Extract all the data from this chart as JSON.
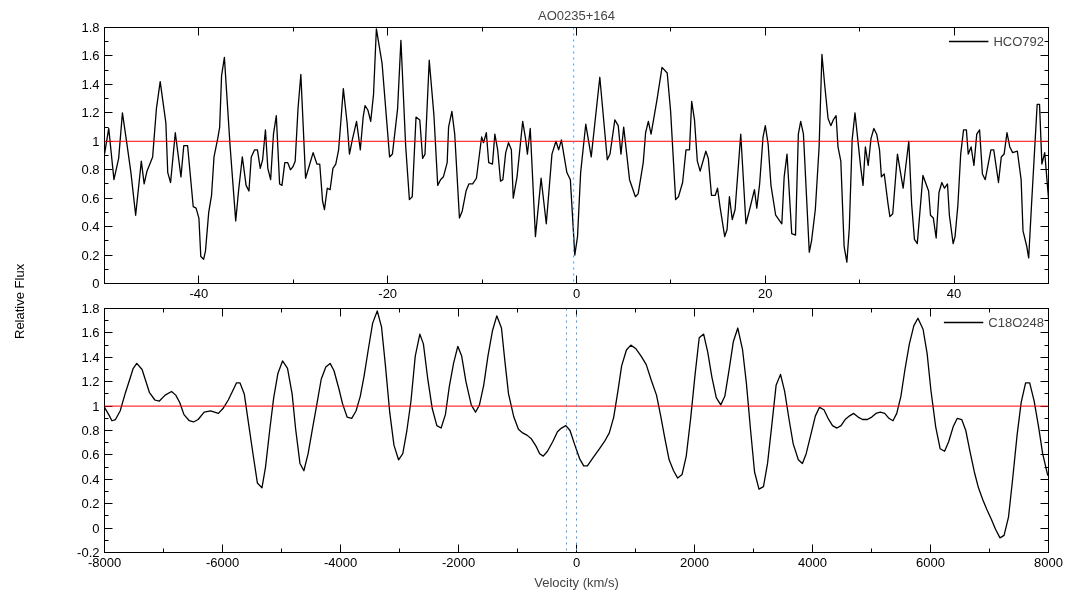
{
  "chart_data": [
    {
      "type": "line",
      "title": "AO0235+164",
      "ylabel": "Relative Flux",
      "legend": "top right",
      "grid": false,
      "xlim": [
        -50,
        50
      ],
      "xticks": [
        {
          "value": -50,
          "label": null
        },
        -40,
        {
          "value": -30,
          "label": null
        },
        -20,
        {
          "value": -10,
          "label": null
        },
        0,
        {
          "value": 10,
          "label": null
        },
        20,
        {
          "value": 30,
          "label": null
        },
        40,
        {
          "value": 50,
          "label": null
        }
      ],
      "ylim": [
        0,
        1.8
      ],
      "yticks": [
        0,
        {
          "value": 0.1,
          "label": null
        },
        0.2,
        {
          "value": 0.3,
          "label": null
        },
        0.4,
        {
          "value": 0.5,
          "label": null
        },
        0.6,
        {
          "value": 0.7,
          "label": null
        },
        0.8,
        {
          "value": 0.9,
          "label": null
        },
        1,
        {
          "value": 1.1,
          "label": null
        },
        1.2,
        {
          "value": 1.3,
          "label": null
        },
        1.4,
        {
          "value": 1.5,
          "label": null
        },
        1.6,
        {
          "value": 1.7,
          "label": null
        },
        1.8
      ],
      "ref_lines": [
        {
          "axis": "y",
          "value": 1,
          "color": "#ff0000",
          "line_style": "solid"
        },
        {
          "axis": "x",
          "value": -0.3,
          "color": "#3399ff",
          "line_style": "dotted"
        }
      ],
      "series": [
        {
          "name": "HCO792",
          "color": "#000000",
          "x": [
            -50,
            -49.55,
            -49.0,
            -48.5,
            -48.1,
            -47.6,
            -47.2,
            -46.7,
            -46.1,
            -45.8,
            -45.5,
            -44.9,
            -44.5,
            -44.1,
            -43.5,
            -43.3,
            -43.0,
            -42.5,
            -41.9,
            -41.6,
            -41.2,
            -40.6,
            -40.3,
            -40.0,
            -39.8,
            -39.5,
            -39.3,
            -38.96,
            -38.66,
            -38.4,
            -38.0,
            -37.8,
            -37.6,
            -37.3,
            -36.7,
            -36.1,
            -35.8,
            -35.4,
            -35.0,
            -34.7,
            -34.45,
            -34.1,
            -33.8,
            -33.5,
            -33.25,
            -32.95,
            -32.7,
            -32.4,
            -32.1,
            -31.8,
            -31.45,
            -31.2,
            -30.9,
            -30.6,
            -30.3,
            -30.05,
            -29.8,
            -29.5,
            -29.2,
            -28.7,
            -28.3,
            -27.9,
            -27.5,
            -27.2,
            -26.9,
            -26.7,
            -26.4,
            -26.1,
            -25.8,
            -25.5,
            -25.2,
            -24.95,
            -24.7,
            -24.3,
            -24.05,
            -23.75,
            -23.3,
            -22.9,
            -22.6,
            -22.4,
            -22.1,
            -21.8,
            -21.5,
            -21.2,
            -20.6,
            -19.8,
            -19.5,
            -18.95,
            -18.6,
            -18.1,
            -17.7,
            -17.4,
            -17.0,
            -16.6,
            -16.3,
            -16.05,
            -15.6,
            -15.1,
            -14.7,
            -14.4,
            -14.1,
            -13.7,
            -13.55,
            -13.2,
            -12.9,
            -12.4,
            -12.1,
            -11.7,
            -11.4,
            -11.0,
            -10.6,
            -10.05,
            -9.85,
            -9.55,
            -9.3,
            -8.9,
            -8.65,
            -8.35,
            -8.05,
            -7.8,
            -7.5,
            -7.2,
            -6.9,
            -6.7,
            -6.3,
            -5.7,
            -5.4,
            -5.2,
            -4.9,
            -4.35,
            -3.75,
            -3.2,
            -2.6,
            -2.18,
            -1.89,
            -1.6,
            -1.02,
            -0.65,
            -0.18,
            0.11,
            0.44,
            0.98,
            1.56,
            2.47,
            3.26,
            3.55,
            4.06,
            4.42,
            4.71,
            5.0,
            5.62,
            6.24,
            6.53,
            7.07,
            7.32,
            7.61,
            7.9,
            8.52,
            9.06,
            9.61,
            9.97,
            10.5,
            10.8,
            11.24,
            11.6,
            11.97,
            12.2,
            12.5,
            12.8,
            13.1,
            13.7,
            13.96,
            14.3,
            14.7,
            14.94,
            15.2,
            15.7,
            15.95,
            16.2,
            16.5,
            16.8,
            17.4,
            17.95,
            18.3,
            18.85,
            19.1,
            19.4,
            19.76,
            20.0,
            20.3,
            20.6,
            21.1,
            21.75,
            22.0,
            22.3,
            22.8,
            23.2,
            23.5,
            23.75,
            24.04,
            24.66,
            24.9,
            25.3,
            25.7,
            26.0,
            26.3,
            26.65,
            26.94,
            27.2,
            27.5,
            27.7,
            28.0,
            28.35,
            28.64,
            28.9,
            29.2,
            29.5,
            29.8,
            30.1,
            30.35,
            30.6,
            30.9,
            31.2,
            31.5,
            31.8,
            32.1,
            32.3,
            32.6,
            33.0,
            33.2,
            33.5,
            34.0,
            34.4,
            34.6,
            35.2,
            35.5,
            35.8,
            36.1,
            36.7,
            37.3,
            37.5,
            37.8,
            38.1,
            38.4,
            38.7,
            38.98,
            39.3,
            39.5,
            39.9,
            40.1,
            40.4,
            40.7,
            41.0,
            41.3,
            41.5,
            41.8,
            42.1,
            42.4,
            42.7,
            43.0,
            43.3,
            43.9,
            44.2,
            44.7,
            45.0,
            45.3,
            45.6,
            45.9,
            46.2,
            46.7,
            47.1,
            47.3,
            47.7,
            47.9,
            48.2,
            48.8,
            49.05,
            49.3,
            49.6,
            50
          ],
          "values": [
            0.91,
            1.09,
            0.73,
            0.88,
            1.2,
            0.97,
            0.78,
            0.48,
            0.86,
            0.7,
            0.79,
            0.89,
            1.23,
            1.42,
            1.13,
            0.78,
            0.71,
            1.06,
            0.75,
            0.97,
            0.97,
            0.54,
            0.53,
            0.46,
            0.19,
            0.17,
            0.23,
            0.5,
            0.62,
            0.89,
            1.02,
            1.1,
            1.46,
            1.59,
            0.97,
            0.44,
            0.65,
            0.89,
            0.69,
            0.65,
            0.89,
            0.94,
            0.94,
            0.81,
            0.87,
            1.08,
            0.81,
            0.73,
            1.05,
            1.18,
            0.7,
            0.69,
            0.85,
            0.85,
            0.8,
            0.82,
            0.86,
            1.23,
            1.47,
            0.74,
            0.83,
            0.92,
            0.84,
            0.84,
            0.58,
            0.52,
            0.67,
            0.66,
            0.81,
            0.84,
            0.94,
            1.15,
            1.37,
            1.13,
            0.91,
            1.01,
            1.14,
            0.94,
            1.17,
            1.25,
            1.22,
            1.14,
            1.33,
            1.79,
            1.55,
            0.89,
            0.91,
            1.23,
            1.71,
            0.97,
            0.59,
            0.61,
            1.17,
            1.15,
            0.88,
            0.91,
            1.57,
            1.18,
            0.69,
            0.73,
            0.75,
            0.85,
            1.1,
            1.21,
            1.05,
            0.46,
            0.51,
            0.65,
            0.7,
            0.7,
            0.74,
            1.03,
            0.99,
            1.06,
            0.85,
            0.84,
            1.05,
            0.94,
            0.72,
            0.73,
            0.92,
            0.99,
            0.94,
            0.6,
            0.75,
            1.14,
            1.02,
            0.91,
            1.09,
            0.33,
            0.74,
            0.42,
            0.91,
            1.0,
            0.94,
            1.01,
            0.78,
            0.73,
            0.2,
            0.33,
            0.78,
            1.12,
            0.89,
            1.45,
            0.87,
            0.91,
            1.15,
            1.11,
            0.91,
            1.1,
            0.73,
            0.61,
            0.63,
            0.85,
            1.06,
            1.14,
            1.05,
            1.29,
            1.52,
            1.48,
            1.21,
            0.59,
            0.61,
            0.71,
            0.94,
            0.94,
            1.28,
            1.15,
            0.86,
            0.79,
            0.93,
            0.88,
            0.62,
            0.62,
            0.67,
            0.54,
            0.33,
            0.38,
            0.61,
            0.45,
            0.52,
            1.05,
            0.42,
            0.51,
            0.66,
            0.53,
            0.7,
            1.03,
            1.11,
            0.98,
            0.69,
            0.48,
            0.42,
            0.75,
            0.91,
            0.35,
            0.34,
            1.05,
            1.14,
            1.05,
            0.22,
            0.3,
            0.52,
            0.96,
            1.61,
            1.39,
            1.16,
            1.11,
            1.15,
            1.18,
            0.96,
            0.86,
            0.26,
            0.15,
            0.39,
            1.01,
            1.2,
            1.01,
            0.82,
            0.69,
            0.96,
            0.83,
            1.02,
            1.09,
            1.05,
            0.94,
            0.75,
            0.77,
            0.56,
            0.47,
            0.49,
            0.91,
            0.75,
            0.67,
            1.0,
            0.56,
            0.31,
            0.28,
            0.76,
            0.65,
            0.48,
            0.46,
            0.32,
            0.64,
            0.71,
            0.67,
            0.7,
            0.48,
            0.28,
            0.33,
            0.55,
            0.91,
            1.08,
            1.08,
            0.91,
            0.96,
            0.83,
            1.05,
            1.08,
            0.77,
            0.73,
            0.94,
            0.94,
            0.71,
            0.89,
            0.91,
            1.06,
            0.96,
            0.92,
            0.93,
            0.73,
            0.37,
            0.26,
            0.18,
            0.55,
            1.26,
            1.26,
            0.84,
            0.92,
            0.6
          ]
        }
      ]
    },
    {
      "type": "line",
      "xlabel": "Velocity (km/s)",
      "legend": "top right",
      "grid": false,
      "xlim": [
        -8000,
        8000
      ],
      "xticks": [
        -8000,
        {
          "value": -7000,
          "label": null
        },
        -6000,
        {
          "value": -5000,
          "label": null
        },
        -4000,
        {
          "value": -3000,
          "label": null
        },
        -2000,
        {
          "value": -1000,
          "label": null
        },
        0,
        {
          "value": 1000,
          "label": null
        },
        2000,
        {
          "value": 3000,
          "label": null
        },
        4000,
        {
          "value": 5000,
          "label": null
        },
        6000,
        {
          "value": 7000,
          "label": null
        },
        8000
      ],
      "ylim": [
        -0.2,
        1.8
      ],
      "yticks": [
        -0.2,
        {
          "value": -0.1,
          "label": null
        },
        0,
        {
          "value": 0.1,
          "label": null
        },
        0.2,
        {
          "value": 0.3,
          "label": null
        },
        0.4,
        {
          "value": 0.5,
          "label": null
        },
        0.6,
        {
          "value": 0.7,
          "label": null
        },
        0.8,
        {
          "value": 0.9,
          "label": null
        },
        1,
        {
          "value": 1.1,
          "label": null
        },
        1.2,
        {
          "value": 1.3,
          "label": null
        },
        1.4,
        {
          "value": 1.5,
          "label": null
        },
        1.6,
        {
          "value": 1.7,
          "label": null
        },
        1.8
      ],
      "ref_lines": [
        {
          "axis": "y",
          "value": 1,
          "color": "#ff0000",
          "line_style": "solid"
        },
        {
          "axis": "x",
          "value": -170,
          "color": "#3399ff",
          "line_style": "dotted"
        },
        {
          "axis": "x",
          "value": 0,
          "color": "#3399ff",
          "line_style": "dotted"
        }
      ],
      "series": [
        {
          "name": "C18O248",
          "color": "#000000",
          "x": [
            -8000,
            -7928,
            -7874,
            -7814,
            -7735,
            -7645,
            -7585,
            -7513,
            -7453,
            -7363,
            -7237,
            -7146,
            -7074,
            -6972,
            -6864,
            -6792,
            -6725,
            -6653,
            -6563,
            -6491,
            -6413,
            -6311,
            -6202,
            -6070,
            -5992,
            -5902,
            -5812,
            -5764,
            -5703,
            -5631,
            -5571,
            -5493,
            -5409,
            -5331,
            -5271,
            -5198,
            -5132,
            -5060,
            -4982,
            -4898,
            -4820,
            -4760,
            -4687,
            -4621,
            -4549,
            -4477,
            -4399,
            -4327,
            -4249,
            -4176,
            -4110,
            -4026,
            -3966,
            -3888,
            -3810,
            -3737,
            -3665,
            -3599,
            -3527,
            -3455,
            -3377,
            -3305,
            -3238,
            -3166,
            -3094,
            -3016,
            -2944,
            -2878,
            -2806,
            -2733,
            -2655,
            -2595,
            -2523,
            -2445,
            -2367,
            -2295,
            -2222,
            -2156,
            -2084,
            -2012,
            -1946,
            -1874,
            -1784,
            -1711,
            -1645,
            -1573,
            -1501,
            -1423,
            -1351,
            -1272,
            -1212,
            -1152,
            -1062,
            -984,
            -912,
            -834,
            -762,
            -684,
            -624,
            -564,
            -492,
            -401,
            -323,
            -255,
            -180,
            -110,
            -35,
            52,
            122,
            185,
            284,
            388,
            475,
            556,
            631,
            701,
            765,
            846,
            921,
            1008,
            1095,
            1182,
            1269,
            1356,
            1431,
            1500,
            1570,
            1645,
            1715,
            1790,
            1860,
            1935,
            2010,
            2080,
            2155,
            2225,
            2294,
            2369,
            2445,
            2514,
            2590,
            2659,
            2734,
            2815,
            2879,
            2949,
            3018,
            3093,
            3169,
            3238,
            3314,
            3383,
            3458,
            3528,
            3603,
            3673,
            3760,
            3829,
            3893,
            3974,
            4049,
            4119,
            4194,
            4264,
            4339,
            4414,
            4484,
            4553,
            4629,
            4698,
            4773,
            4849,
            4930,
            5005,
            5075,
            5150,
            5225,
            5295,
            5364,
            5428,
            5498,
            5567,
            5642,
            5718,
            5787,
            5874,
            5943,
            6007,
            6088,
            6164,
            6239,
            6309,
            6384,
            6454,
            6529,
            6598,
            6668,
            6743,
            6813,
            6888,
            6957,
            7033,
            7102,
            7178,
            7247,
            7322,
            7392,
            7467,
            7537,
            7612,
            7681,
            7757,
            7832,
            7901,
            7988
          ],
          "values": [
            0.99,
            0.93,
            0.88,
            0.89,
            0.96,
            1.11,
            1.2,
            1.31,
            1.35,
            1.3,
            1.11,
            1.05,
            1.04,
            1.09,
            1.12,
            1.09,
            1.03,
            0.93,
            0.88,
            0.87,
            0.89,
            0.95,
            0.96,
            0.94,
            0.98,
            1.05,
            1.14,
            1.19,
            1.19,
            1.1,
            0.9,
            0.64,
            0.37,
            0.33,
            0.5,
            0.81,
            1.07,
            1.27,
            1.37,
            1.31,
            1.1,
            0.81,
            0.53,
            0.47,
            0.61,
            0.81,
            1.02,
            1.22,
            1.32,
            1.35,
            1.29,
            1.14,
            1.02,
            0.91,
            0.9,
            0.96,
            1.08,
            1.25,
            1.47,
            1.68,
            1.78,
            1.65,
            1.33,
            0.95,
            0.68,
            0.56,
            0.61,
            0.79,
            1.04,
            1.41,
            1.59,
            1.51,
            1.23,
            0.98,
            0.84,
            0.82,
            0.93,
            1.16,
            1.35,
            1.49,
            1.41,
            1.2,
            1.01,
            0.95,
            1.01,
            1.17,
            1.41,
            1.62,
            1.74,
            1.64,
            1.36,
            1.1,
            0.91,
            0.81,
            0.78,
            0.76,
            0.73,
            0.67,
            0.61,
            0.59,
            0.63,
            0.71,
            0.79,
            0.82,
            0.84,
            0.8,
            0.69,
            0.57,
            0.51,
            0.51,
            0.58,
            0.65,
            0.71,
            0.78,
            0.91,
            1.12,
            1.33,
            1.46,
            1.5,
            1.47,
            1.41,
            1.34,
            1.21,
            1.09,
            0.91,
            0.73,
            0.56,
            0.47,
            0.41,
            0.44,
            0.59,
            0.9,
            1.26,
            1.56,
            1.59,
            1.44,
            1.24,
            1.07,
            1.01,
            1.08,
            1.31,
            1.53,
            1.64,
            1.46,
            1.19,
            0.81,
            0.46,
            0.32,
            0.34,
            0.53,
            0.86,
            1.17,
            1.26,
            1.12,
            0.89,
            0.69,
            0.56,
            0.53,
            0.61,
            0.77,
            0.92,
            0.99,
            0.97,
            0.9,
            0.84,
            0.82,
            0.84,
            0.89,
            0.92,
            0.94,
            0.91,
            0.89,
            0.89,
            0.91,
            0.94,
            0.95,
            0.94,
            0.9,
            0.88,
            0.94,
            1.08,
            1.3,
            1.51,
            1.66,
            1.72,
            1.63,
            1.43,
            1.13,
            0.83,
            0.65,
            0.63,
            0.71,
            0.83,
            0.9,
            0.89,
            0.8,
            0.63,
            0.46,
            0.33,
            0.23,
            0.15,
            0.07,
            -0.01,
            -0.08,
            -0.06,
            0.09,
            0.4,
            0.76,
            1.03,
            1.19,
            1.19,
            1.04,
            0.83,
            0.61,
            0.43
          ]
        }
      ]
    }
  ]
}
